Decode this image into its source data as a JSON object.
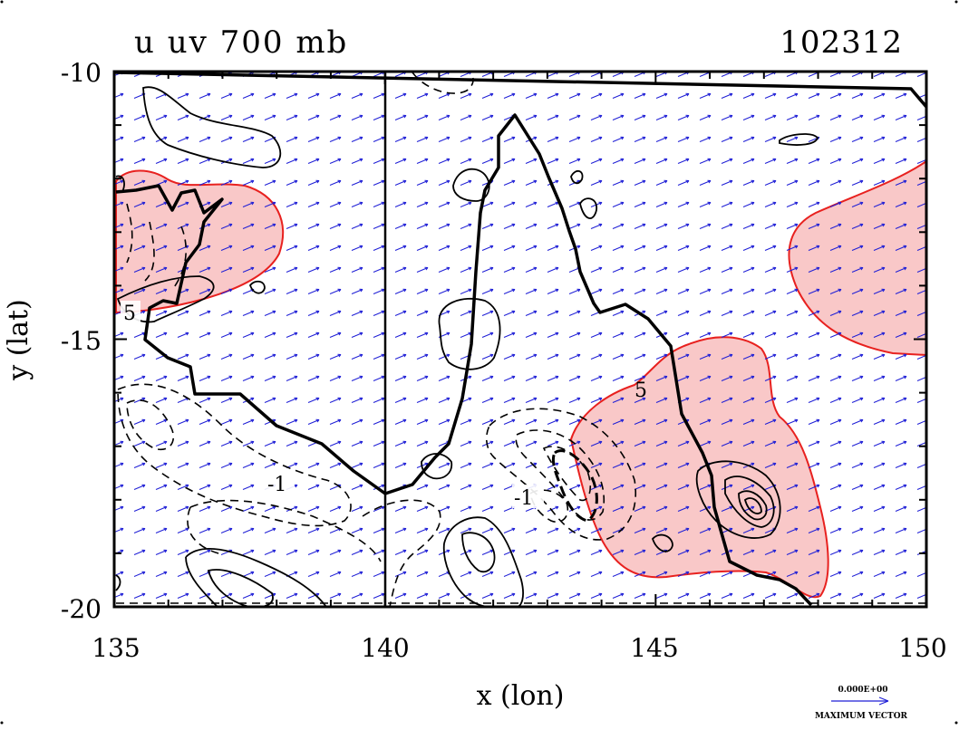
{
  "title": "u uv 700 mb",
  "run_id": "102312",
  "x_axis": {
    "label": "x (lon)",
    "ticks": [
      "135",
      "140",
      "145",
      "150"
    ],
    "range": [
      135,
      150
    ]
  },
  "y_axis": {
    "label": "y (lat)",
    "ticks": [
      "-10",
      "-15",
      "-20"
    ],
    "range": [
      -20,
      -10
    ]
  },
  "contour_labels": [
    "5",
    "-1",
    "5",
    "-1"
  ],
  "vector_key": {
    "value": "0.000E+00",
    "caption": "MAXIMUM VECTOR"
  },
  "colors": {
    "shading_fill": "#f9c8c8",
    "shading_edge": "#e8211f",
    "vectors": "#1f1fd6",
    "coast": "#000000"
  }
}
